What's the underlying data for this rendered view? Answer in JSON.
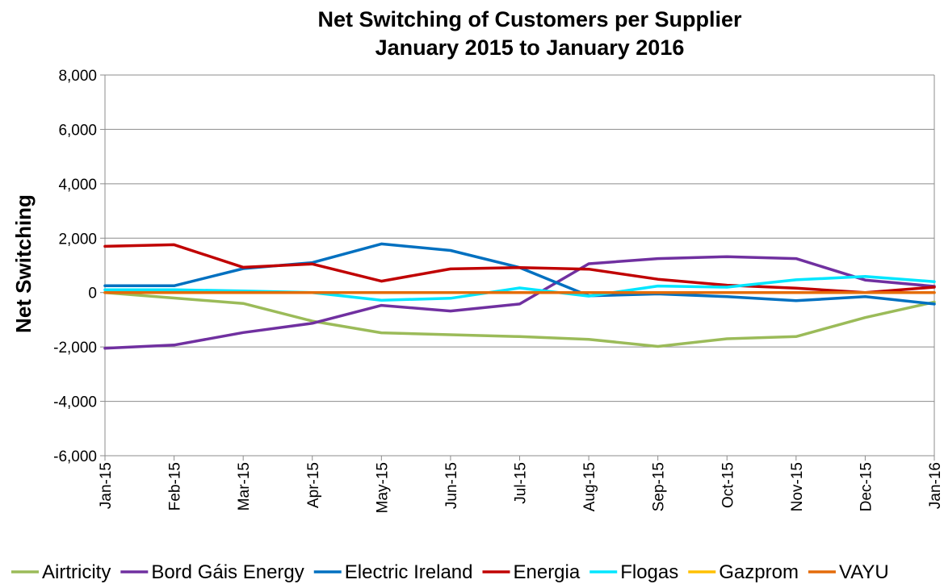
{
  "chart_data": {
    "type": "line",
    "title": [
      "Net Switching of Customers per Supplier",
      "January 2015 to January 2016"
    ],
    "xlabel": "",
    "ylabel": "Net Switching",
    "ylim": [
      -6000,
      8000
    ],
    "yticks": [
      8000,
      6000,
      4000,
      2000,
      0,
      -2000,
      -4000,
      -6000
    ],
    "ytick_labels": [
      "8,000",
      "6,000",
      "4,000",
      "2,000",
      "0",
      "-2,000",
      "-4,000",
      "-6,000"
    ],
    "grid": true,
    "legend_position": "bottom",
    "categories": [
      "Jan-15",
      "Feb-15",
      "Mar-15",
      "Apr-15",
      "May-15",
      "Jun-15",
      "Jul-15",
      "Aug-15",
      "Sep-15",
      "Oct-15",
      "Nov-15",
      "Dec-15",
      "Jan-16"
    ],
    "series": [
      {
        "name": "Airtricity",
        "color": "#9bbb59",
        "values": [
          0,
          -200,
          -400,
          -1050,
          -1480,
          -1550,
          -1620,
          -1720,
          -1980,
          -1700,
          -1620,
          -920,
          -350
        ]
      },
      {
        "name": "Bord Gáis Energy",
        "color": "#7030a0",
        "values": [
          -2050,
          -1930,
          -1470,
          -1130,
          -470,
          -680,
          -420,
          1060,
          1250,
          1320,
          1250,
          460,
          230
        ]
      },
      {
        "name": "Electric Ireland",
        "color": "#0070c0",
        "values": [
          250,
          250,
          880,
          1100,
          1790,
          1550,
          920,
          -120,
          -50,
          -150,
          -300,
          -150,
          -420
        ]
      },
      {
        "name": "Energia",
        "color": "#c00000",
        "values": [
          1700,
          1760,
          930,
          1050,
          420,
          870,
          920,
          860,
          490,
          270,
          160,
          0,
          200
        ]
      },
      {
        "name": "Flogas",
        "color": "#00e6ff",
        "values": [
          100,
          100,
          60,
          0,
          -280,
          -210,
          170,
          -130,
          240,
          200,
          470,
          590,
          400
        ]
      },
      {
        "name": "Gazprom",
        "color": "#ffc000",
        "values": [
          0,
          0,
          0,
          0,
          0,
          0,
          0,
          0,
          0,
          0,
          0,
          0,
          0
        ]
      },
      {
        "name": "VAYU",
        "color": "#e46c0a",
        "values": [
          0,
          0,
          0,
          0,
          0,
          0,
          0,
          0,
          0,
          0,
          0,
          0,
          0
        ]
      }
    ]
  }
}
